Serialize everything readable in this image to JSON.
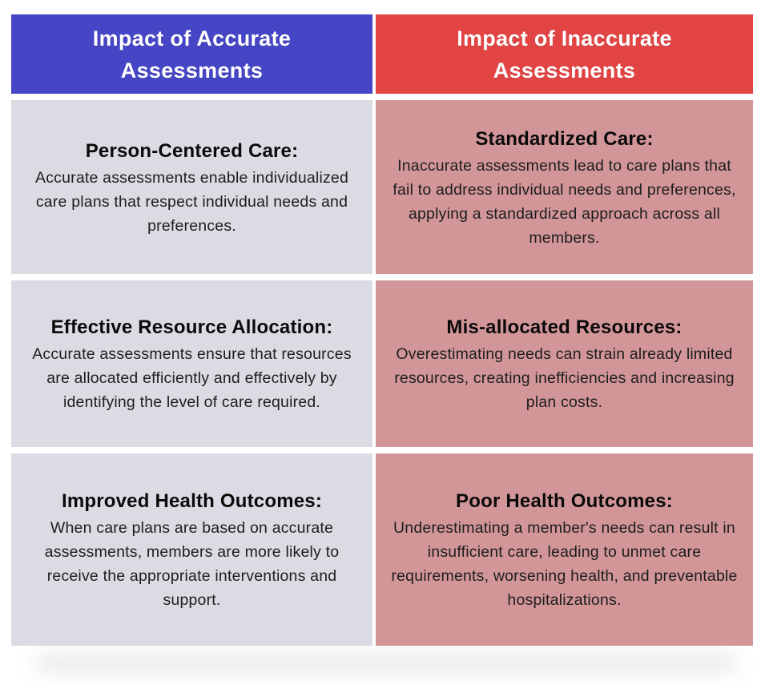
{
  "colors": {
    "accurate_header_bg": "#4545c5",
    "inaccurate_header_bg": "#e24444",
    "accurate_cell_bg": "#dcdae2",
    "inaccurate_cell_bg": "#d29598",
    "header_text": "#ffffff",
    "body_text": "#1e1e1e"
  },
  "table": {
    "columns": [
      {
        "id": "accurate",
        "header": "Impact of Accurate Assessments",
        "cells": [
          {
            "heading": "Person-Centered Care:",
            "body": "Accurate assessments enable individualized care plans that respect individual needs and preferences."
          },
          {
            "heading": "Effective Resource Allocation:",
            "body": "Accurate assessments ensure that resources are allocated efficiently and effectively by identifying the level of care required."
          },
          {
            "heading": "Improved Health Outcomes:",
            "body": "When care plans are based on accurate assessments, members are more likely to receive the appropriate interventions and support."
          }
        ]
      },
      {
        "id": "inaccurate",
        "header": "Impact of Inaccurate Assessments",
        "cells": [
          {
            "heading": "Standardized Care:",
            "body": "Inaccurate assessments lead to care plans that fail to address individual needs and preferences, applying a standardized approach across all members."
          },
          {
            "heading": "Mis-allocated Resources:",
            "body": "Overestimating needs can strain already limited resources, creating inefficiencies and increasing plan costs."
          },
          {
            "heading": "Poor Health Outcomes:",
            "body": "Underestimating a member's needs can result in insufficient care, leading to unmet care requirements, worsening health, and preventable hospitalizations."
          }
        ]
      }
    ]
  }
}
